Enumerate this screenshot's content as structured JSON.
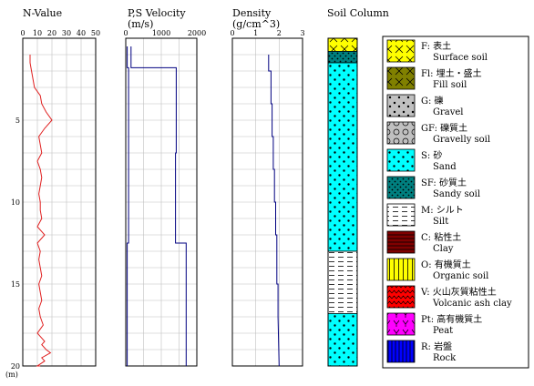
{
  "panels": {
    "nvalue": {
      "title": "N-Value",
      "ticks": [
        "0",
        "10",
        "20",
        "30",
        "40",
        "50"
      ]
    },
    "velocity": {
      "title_line1": "P,S Velocity",
      "title_line2": "(m/s)",
      "ticks": [
        "0",
        "1000",
        "2000"
      ]
    },
    "density": {
      "title_line1": "Density",
      "title_line2": "(g/cm^3)",
      "ticks": [
        "0",
        "1",
        "2",
        "3"
      ]
    },
    "soil": {
      "title": "Soil Column"
    }
  },
  "depth_axis": {
    "ticks": [
      "5",
      "10",
      "15",
      "20"
    ],
    "unit": "(m)"
  },
  "chart_data": [
    {
      "type": "line",
      "title": "N-Value",
      "xlim": [
        0,
        50
      ],
      "ylim": [
        0,
        20
      ],
      "y_reversed": true,
      "ylabel": "(m)",
      "series": [
        {
          "color": "#e02020",
          "x": [
            5,
            5,
            6,
            7,
            8,
            12,
            13,
            16,
            20,
            15,
            11,
            12,
            13,
            10,
            12,
            13,
            12,
            11,
            12,
            12,
            13,
            10,
            15,
            10,
            12,
            11,
            12,
            13,
            11,
            12,
            13,
            11,
            12,
            14,
            10,
            12,
            15,
            13,
            16,
            19,
            13,
            15,
            10,
            12
          ],
          "y": [
            1,
            1.5,
            2,
            2.5,
            3,
            3.5,
            4,
            4.5,
            5,
            5.5,
            6,
            6.5,
            7,
            7.5,
            8,
            8.5,
            9,
            9.5,
            10,
            10.5,
            11,
            11.5,
            12,
            12.5,
            13,
            13.5,
            14,
            14.5,
            15,
            15.5,
            16,
            16.5,
            17,
            17.5,
            18,
            18.2,
            18.5,
            18.7,
            19,
            19.2,
            19.5,
            19.7,
            20,
            20
          ]
        }
      ]
    },
    {
      "type": "line",
      "title": "P,S Velocity",
      "xlabel": "(m/s)",
      "xlim": [
        0,
        2000
      ],
      "ylim": [
        0,
        20
      ],
      "y_reversed": true,
      "series": [
        {
          "color": "#000080",
          "x": [
            150,
            150,
            1420,
            1420,
            1400,
            1400,
            1700,
            1700
          ],
          "y": [
            0.5,
            1.8,
            1.8,
            7,
            7,
            12.5,
            12.5,
            20
          ]
        },
        {
          "color": "#000080",
          "x": [
            40,
            40,
            80,
            80,
            40,
            40,
            40
          ],
          "y": [
            0.5,
            1.8,
            1.8,
            12.5,
            12.5,
            20,
            20
          ]
        }
      ]
    },
    {
      "type": "line",
      "title": "Density",
      "xlabel": "(g/cm^3)",
      "xlim": [
        0,
        3
      ],
      "ylim": [
        0,
        20
      ],
      "y_reversed": true,
      "series": [
        {
          "color": "#000080",
          "x": [
            1.55,
            1.55,
            1.65,
            1.65,
            1.7,
            1.7,
            1.75,
            1.75,
            1.8,
            1.8,
            1.85,
            1.85,
            1.9,
            1.9,
            1.95,
            1.95,
            2.0
          ],
          "y": [
            1,
            2,
            2,
            4,
            4,
            6,
            6,
            8,
            8,
            10,
            10,
            12,
            12,
            15,
            15,
            17,
            20
          ]
        }
      ]
    }
  ],
  "soil_column": [
    {
      "type": "F",
      "from": 0,
      "to": 0.8
    },
    {
      "type": "SF",
      "from": 0.8,
      "to": 1.5
    },
    {
      "type": "S",
      "from": 1.5,
      "to": 13.0
    },
    {
      "type": "M",
      "from": 13.0,
      "to": 16.8
    },
    {
      "type": "S",
      "from": 16.8,
      "to": 20.0
    }
  ],
  "legend": [
    {
      "code": "F",
      "jp": "F: 表土",
      "en": "Surface soil",
      "color": "#ffff00"
    },
    {
      "code": "Fl",
      "jp": "Fl: 埋土・盛土",
      "en": "Fill soil",
      "color": "#808000"
    },
    {
      "code": "G",
      "jp": "G: 礫",
      "en": "Gravel",
      "color": "#c0c0c0"
    },
    {
      "code": "GF",
      "jp": "GF: 礫質土",
      "en": "Gravelly soil",
      "color": "#c0c0c0"
    },
    {
      "code": "S",
      "jp": "S: 砂",
      "en": "Sand",
      "color": "#00ffff"
    },
    {
      "code": "SF",
      "jp": "SF: 砂質土",
      "en": "Sandy soil",
      "color": "#008080"
    },
    {
      "code": "M",
      "jp": "M: シルト",
      "en": "Silt",
      "color": "#ffffff"
    },
    {
      "code": "C",
      "jp": "C: 粘性土",
      "en": "Clay",
      "color": "#800000"
    },
    {
      "code": "O",
      "jp": "O: 有機質土",
      "en": "Organic soil",
      "color": "#ffff00"
    },
    {
      "code": "V",
      "jp": "V: 火山灰質粘性土",
      "en": "Volcanic ash clay",
      "color": "#ff0000"
    },
    {
      "code": "Pt",
      "jp": "Pt: 高有機質土",
      "en": "Peat",
      "color": "#ff00ff"
    },
    {
      "code": "R",
      "jp": "R: 岩盤",
      "en": "Rock",
      "color": "#0000ff"
    }
  ]
}
